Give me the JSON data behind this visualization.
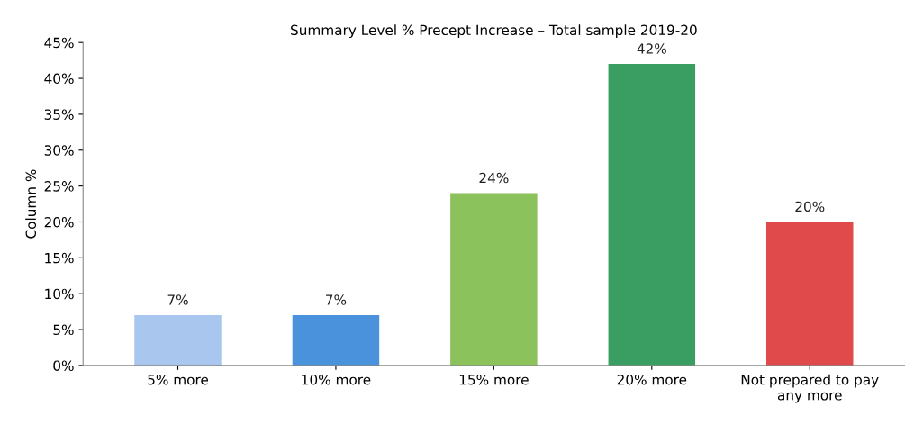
{
  "chart_data": {
    "type": "bar",
    "title": "Summary Level % Precept Increase – Total sample 2019-20",
    "ylabel": "Column %",
    "categories": [
      "5% more",
      "10% more",
      "15% more",
      "20% more",
      "Not prepared to pay\nany more"
    ],
    "values": [
      7,
      7,
      24,
      42,
      20
    ],
    "colors": [
      "#a9c6ee",
      "#4a92dc",
      "#8cc25c",
      "#3a9e62",
      "#e04a4a"
    ],
    "value_labels": [
      "7%",
      "7%",
      "24%",
      "42%",
      "20%"
    ],
    "ylim": [
      0,
      45
    ],
    "yticks": [
      {
        "value": 0,
        "label": "0%"
      },
      {
        "value": 5,
        "label": "5%"
      },
      {
        "value": 10,
        "label": "10%"
      },
      {
        "value": 15,
        "label": "15%"
      },
      {
        "value": 20,
        "label": "20%"
      },
      {
        "value": 25,
        "label": "25%"
      },
      {
        "value": 30,
        "label": "30%"
      },
      {
        "value": 35,
        "label": "35%"
      },
      {
        "value": 40,
        "label": "40%"
      },
      {
        "value": 45,
        "label": "45%"
      }
    ],
    "grid": false,
    "legend": false
  }
}
